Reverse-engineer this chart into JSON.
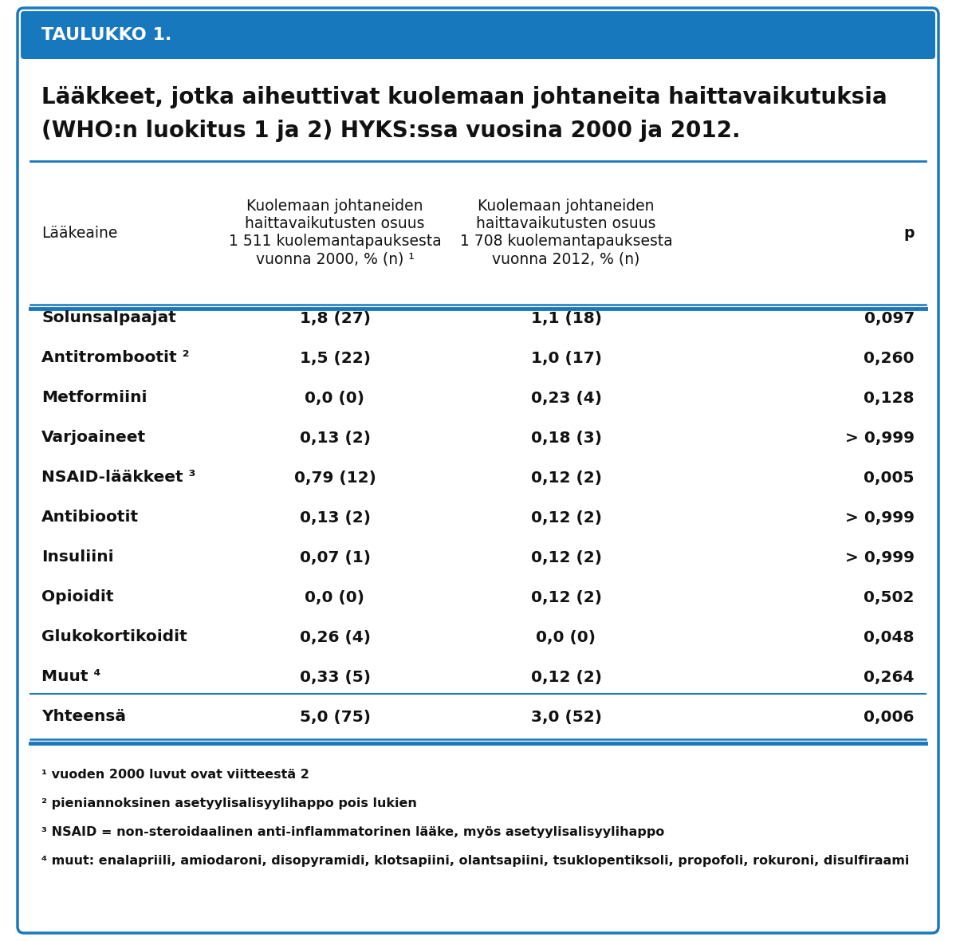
{
  "title_bar_text": "TAULUKKO 1.",
  "title_bar_color": "#1878be",
  "title_text_line1": "Lääkkeet, jotka aiheuttivat kuolemaan johtaneita haittavaikutuksia",
  "title_text_line2": "(WHO:n luokitus 1 ja 2) HYKS:ssa vuosina 2000 ja 2012.",
  "col_headers": [
    "Lääkeaine",
    "Kuolemaan johtaneiden\nhaittavaikutusten osuus\n1 511 kuolemantapauksesta\nvuonna 2000, % (n) ¹",
    "Kuolemaan johtaneiden\nhaittavaikutusten osuus\n1 708 kuolemantapauksesta\nvuonna 2012, % (n)",
    "p"
  ],
  "rows": [
    [
      "Solunsalpaajat",
      "1,8 (27)",
      "1,1 (18)",
      "0,097"
    ],
    [
      "Antitrombootit ²",
      "1,5 (22)",
      "1,0 (17)",
      "0,260"
    ],
    [
      "Metformiini",
      "0,0 (0)",
      "0,23 (4)",
      "0,128"
    ],
    [
      "Varjoaineet",
      "0,13 (2)",
      "0,18 (3)",
      "> 0,999"
    ],
    [
      "NSAID-lääkkeet ³",
      "0,79 (12)",
      "0,12 (2)",
      "0,005"
    ],
    [
      "Antibiootit",
      "0,13 (2)",
      "0,12 (2)",
      "> 0,999"
    ],
    [
      "Insuliini",
      "0,07 (1)",
      "0,12 (2)",
      "> 0,999"
    ],
    [
      "Opioidit",
      "0,0 (0)",
      "0,12 (2)",
      "0,502"
    ],
    [
      "Glukokortikoidit",
      "0,26 (4)",
      "0,0 (0)",
      "0,048"
    ],
    [
      "Muut ⁴",
      "0,33 (5)",
      "0,12 (2)",
      "0,264"
    ],
    [
      "Yhteensä",
      "5,0 (75)",
      "3,0 (52)",
      "0,006"
    ]
  ],
  "footnotes": [
    "¹ vuoden 2000 luvut ovat viitteestä 2",
    "² pieniannoksinen asetyylisalisyylihappo pois lukien",
    "³ NSAID = non-steroidaalinen anti-inflammatorinen lääke, myös asetyylisalisyylihappo",
    "⁴ muut: enalapriili, amiodaroni, disopyramidi, klotsapiini, olantsapiini, tsuklopentiksoli, propofoli, rokuroni, disulfiraami"
  ],
  "bg_color": "#ffffff",
  "border_color": "#1878be",
  "line_color": "#1878be",
  "text_color": "#111111",
  "footnote_fontsize": 11.5,
  "row_fontsize": 14.5,
  "header_fontsize": 13.5,
  "title_fontsize": 20,
  "title_bar_fontsize": 16
}
